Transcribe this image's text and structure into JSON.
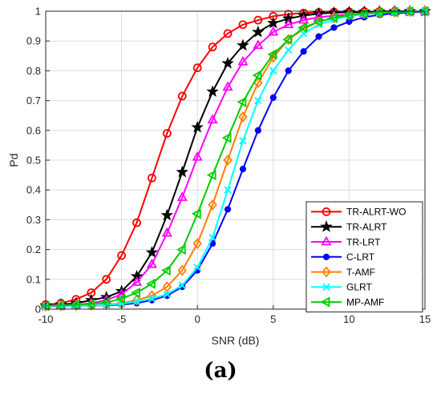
{
  "caption": "(a)",
  "chart_data": {
    "type": "line",
    "xlabel": "SNR (dB)",
    "ylabel": "Pd",
    "xlim": [
      -10,
      15
    ],
    "ylim": [
      0,
      1
    ],
    "xticks": [
      -10,
      -5,
      0,
      5,
      10,
      15
    ],
    "yticks": [
      0,
      0.1,
      0.2,
      0.3,
      0.4,
      0.5,
      0.6,
      0.7,
      0.8,
      0.9,
      1
    ],
    "grid": true,
    "legend_position": "bottom-right",
    "x": [
      -10,
      -9,
      -8,
      -7,
      -6,
      -5,
      -4,
      -3,
      -2,
      -1,
      0,
      1,
      2,
      3,
      4,
      5,
      6,
      7,
      8,
      9,
      10,
      11,
      12,
      13,
      14,
      15
    ],
    "series": [
      {
        "name": "TR-ALRT-WO",
        "color": "#ff0000",
        "marker": "circle",
        "values": [
          0.015,
          0.02,
          0.033,
          0.055,
          0.1,
          0.18,
          0.29,
          0.44,
          0.59,
          0.715,
          0.81,
          0.88,
          0.925,
          0.955,
          0.97,
          0.983,
          0.99,
          0.994,
          0.996,
          0.997,
          0.998,
          0.999,
          0.999,
          1,
          1,
          1
        ]
      },
      {
        "name": "TR-ALRT",
        "color": "#000000",
        "marker": "star",
        "values": [
          0.012,
          0.015,
          0.02,
          0.03,
          0.04,
          0.06,
          0.11,
          0.19,
          0.315,
          0.46,
          0.61,
          0.73,
          0.825,
          0.885,
          0.93,
          0.96,
          0.975,
          0.985,
          0.992,
          0.995,
          0.997,
          0.998,
          0.999,
          1,
          1,
          1
        ]
      },
      {
        "name": "TR-LRT",
        "color": "#ff00ff",
        "marker": "triangle",
        "values": [
          0.012,
          0.013,
          0.015,
          0.02,
          0.03,
          0.05,
          0.09,
          0.15,
          0.255,
          0.375,
          0.51,
          0.635,
          0.745,
          0.83,
          0.885,
          0.93,
          0.955,
          0.97,
          0.98,
          0.985,
          0.99,
          0.993,
          0.996,
          0.998,
          0.999,
          1
        ]
      },
      {
        "name": "C-LRT",
        "color": "#0000ff",
        "marker": "dot",
        "values": [
          0.01,
          0.01,
          0.011,
          0.012,
          0.013,
          0.015,
          0.02,
          0.03,
          0.045,
          0.075,
          0.13,
          0.22,
          0.335,
          0.47,
          0.6,
          0.71,
          0.8,
          0.865,
          0.915,
          0.945,
          0.965,
          0.98,
          0.988,
          0.993,
          0.996,
          0.998
        ]
      },
      {
        "name": "T-AMF",
        "color": "#ff7f00",
        "marker": "diamond",
        "values": [
          0.01,
          0.011,
          0.012,
          0.013,
          0.015,
          0.02,
          0.03,
          0.045,
          0.075,
          0.13,
          0.22,
          0.35,
          0.5,
          0.645,
          0.76,
          0.845,
          0.905,
          0.94,
          0.965,
          0.978,
          0.987,
          0.992,
          0.995,
          0.997,
          0.999,
          1
        ]
      },
      {
        "name": "GLRT",
        "color": "#00ffff",
        "marker": "x",
        "values": [
          0.01,
          0.01,
          0.011,
          0.012,
          0.014,
          0.018,
          0.025,
          0.035,
          0.05,
          0.08,
          0.14,
          0.24,
          0.4,
          0.565,
          0.7,
          0.8,
          0.87,
          0.925,
          0.955,
          0.972,
          0.983,
          0.99,
          0.994,
          0.997,
          0.999,
          1
        ]
      },
      {
        "name": "MP-AMF",
        "color": "#00cc00",
        "marker": "left-triangle",
        "values": [
          0.011,
          0.012,
          0.014,
          0.017,
          0.022,
          0.035,
          0.055,
          0.085,
          0.13,
          0.2,
          0.32,
          0.45,
          0.575,
          0.695,
          0.785,
          0.855,
          0.905,
          0.945,
          0.965,
          0.978,
          0.987,
          0.992,
          0.995,
          0.997,
          0.999,
          1
        ]
      }
    ]
  }
}
